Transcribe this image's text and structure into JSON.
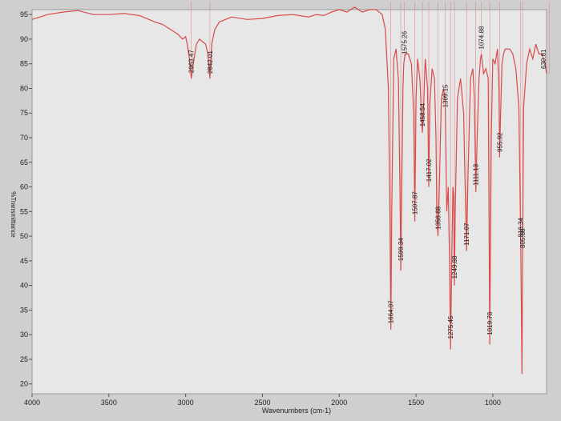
{
  "chart_data": {
    "type": "line",
    "title": "",
    "xlabel": "Wavenumbers (cm-1)",
    "ylabel": "%Transmittance",
    "xlim": [
      4000,
      650
    ],
    "ylim": [
      18,
      96
    ],
    "x_reversed": true,
    "grid": false,
    "xticks": [
      4000,
      3500,
      3000,
      2500,
      2000,
      1500,
      1000
    ],
    "yticks": [
      20,
      25,
      30,
      35,
      40,
      45,
      50,
      55,
      60,
      65,
      70,
      75,
      80,
      85,
      90,
      95
    ],
    "series": [
      {
        "color": "#d94a4a",
        "x": [
          4000,
          3900,
          3800,
          3700,
          3600,
          3500,
          3400,
          3300,
          3200,
          3150,
          3100,
          3050,
          3020,
          3000,
          2990,
          2975,
          2963,
          2950,
          2930,
          2910,
          2890,
          2870,
          2855,
          2842,
          2830,
          2810,
          2780,
          2700,
          2600,
          2500,
          2400,
          2300,
          2200,
          2150,
          2100,
          2050,
          2000,
          1950,
          1900,
          1850,
          1800,
          1760,
          1720,
          1700,
          1680,
          1670,
          1664,
          1658,
          1645,
          1630,
          1615,
          1605,
          1599,
          1593,
          1585,
          1580,
          1575,
          1570,
          1550,
          1530,
          1515,
          1508,
          1500,
          1490,
          1475,
          1465,
          1459,
          1452,
          1440,
          1425,
          1417,
          1410,
          1395,
          1380,
          1370,
          1365,
          1357,
          1350,
          1335,
          1320,
          1310,
          1300,
          1290,
          1282,
          1275,
          1268,
          1260,
          1255,
          1250,
          1245,
          1230,
          1210,
          1190,
          1180,
          1171,
          1162,
          1145,
          1130,
          1120,
          1111,
          1102,
          1090,
          1080,
          1075,
          1060,
          1045,
          1030,
          1020,
          1010,
          1000,
          985,
          970,
          960,
          956,
          950,
          940,
          930,
          920,
          910,
          890,
          870,
          850,
          830,
          818,
          810,
          806,
          800,
          780,
          760,
          740,
          720,
          700,
          680,
          660,
          650
        ],
        "y": [
          94,
          95,
          95.5,
          95.8,
          95,
          95,
          95.2,
          94.8,
          93.5,
          93,
          92,
          91,
          90,
          90.5,
          89,
          86,
          82,
          85,
          89,
          90,
          89.5,
          89,
          87,
          82,
          89,
          92,
          93.5,
          94.5,
          94,
          94.2,
          94.8,
          95,
          94.5,
          95,
          94.8,
          95.5,
          96,
          95.5,
          96.5,
          95.5,
          96,
          96,
          95,
          92,
          80,
          55,
          31,
          55,
          86,
          88,
          82,
          60,
          43,
          60,
          80,
          85,
          86,
          87,
          87,
          85,
          75,
          53,
          78,
          86,
          82,
          75,
          71,
          75,
          86,
          80,
          60,
          77,
          84,
          82,
          70,
          55,
          50,
          58,
          78,
          80,
          77,
          55,
          60,
          45,
          27,
          44,
          60,
          58,
          40,
          55,
          78,
          82,
          75,
          60,
          47,
          62,
          82,
          84,
          78,
          59,
          70,
          82,
          86,
          87,
          83,
          84,
          82,
          28,
          70,
          86,
          85,
          88,
          80,
          66,
          74,
          85,
          87,
          88,
          88,
          88,
          87,
          84,
          76,
          48,
          22,
          46,
          76,
          85,
          88,
          86,
          89,
          87,
          87,
          85,
          83
        ]
      }
    ],
    "peak_labels": [
      {
        "text": "2963.47",
        "x": 2963.47
      },
      {
        "text": "2842.01",
        "x": 2842.01
      },
      {
        "text": "1664.07",
        "x": 1664.07
      },
      {
        "text": "1599.34",
        "x": 1599.34
      },
      {
        "text": "1575.26",
        "x": 1575.26
      },
      {
        "text": "1507.87",
        "x": 1507.87
      },
      {
        "text": "1458.54",
        "x": 1458.54
      },
      {
        "text": "1417.02",
        "x": 1417.02
      },
      {
        "text": "1356.68",
        "x": 1356.68
      },
      {
        "text": "1309.15",
        "x": 1309.15
      },
      {
        "text": "1275.45",
        "x": 1275.45
      },
      {
        "text": "1249.88",
        "x": 1249.88
      },
      {
        "text": "1171.07",
        "x": 1171.07
      },
      {
        "text": "1111.13",
        "x": 1111.13
      },
      {
        "text": "1074.88",
        "x": 1074.88
      },
      {
        "text": "1019.78",
        "x": 1019.78
      },
      {
        "text": "955.92",
        "x": 955.92
      },
      {
        "text": "818.34",
        "x": 818.34
      },
      {
        "text": "805.88",
        "x": 805.88
      },
      {
        "text": "630.81",
        "x": 630.81
      }
    ]
  }
}
